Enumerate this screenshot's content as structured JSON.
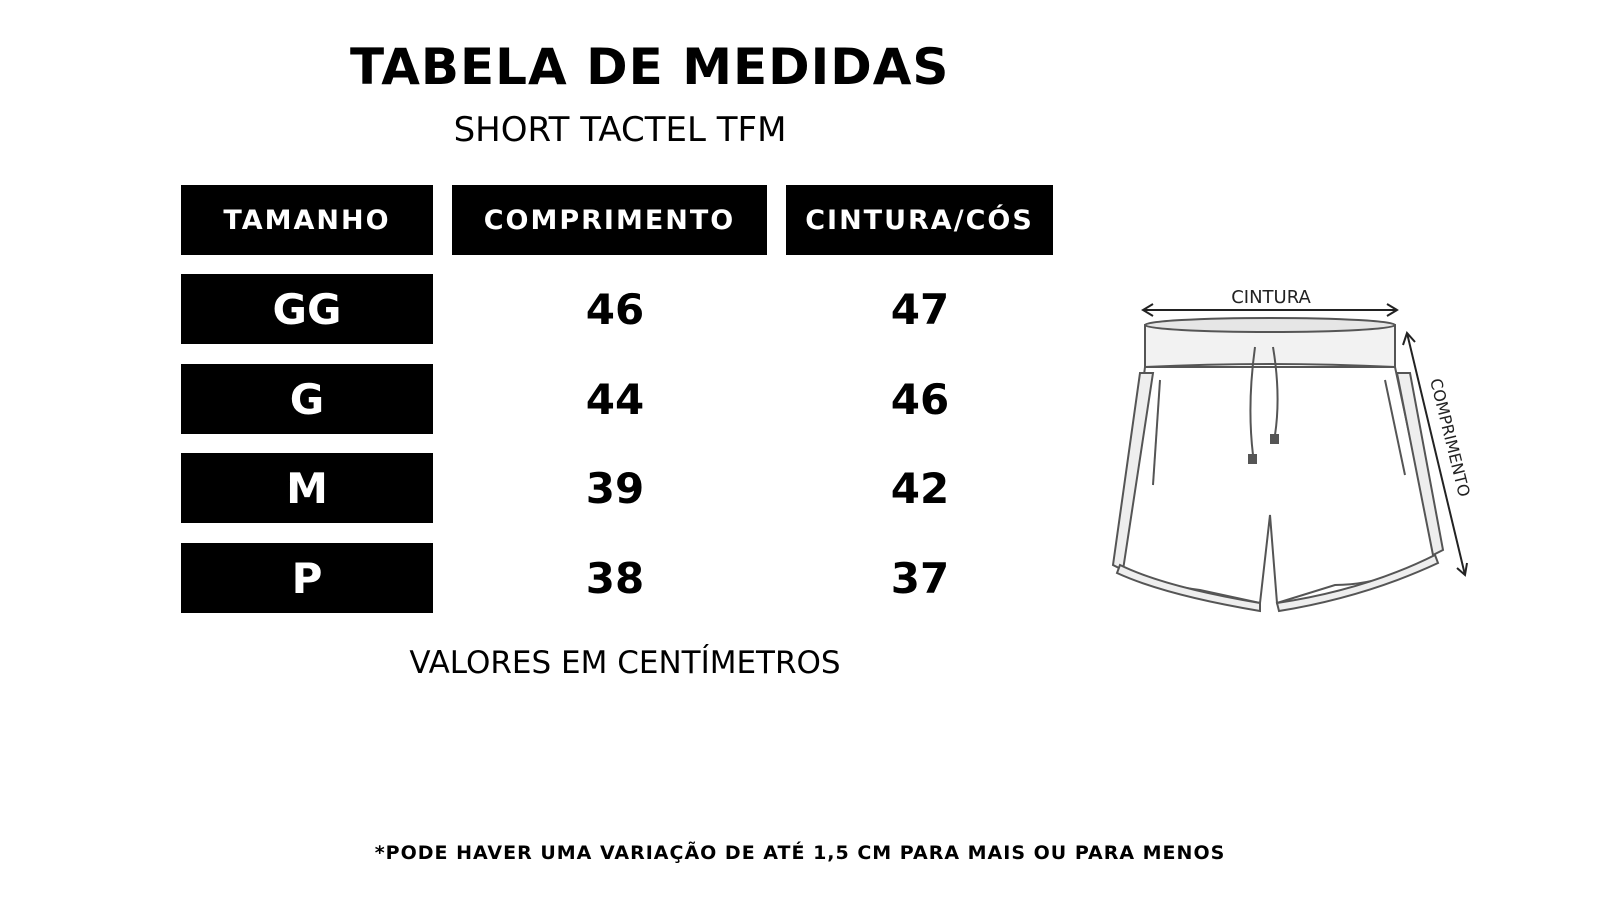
{
  "title": "TABELA DE MEDIDAS",
  "subtitle": "SHORT TACTEL TFM",
  "table": {
    "headers": [
      "TAMANHO",
      "COMPRIMENTO",
      "CINTURA/CÓS"
    ],
    "rows": [
      {
        "size": "GG",
        "length": "46",
        "waist": "47"
      },
      {
        "size": "G",
        "length": "44",
        "waist": "46"
      },
      {
        "size": "M",
        "length": "39",
        "waist": "42"
      },
      {
        "size": "P",
        "length": "38",
        "waist": "37"
      }
    ]
  },
  "units_note": "VALORES EM CENTÍMETROS",
  "illustration": {
    "waist_label": "CINTURA",
    "length_label": "COMPRIMENTO",
    "icon": "shorts-drawing"
  },
  "footnote": "*PODE HAVER UMA VARIAÇÃO DE ATÉ 1,5 CM PARA MAIS OU PARA MENOS",
  "colors": {
    "background": "#ffffff",
    "header_bg": "#000000",
    "header_text": "#ffffff",
    "text": "#000000"
  }
}
